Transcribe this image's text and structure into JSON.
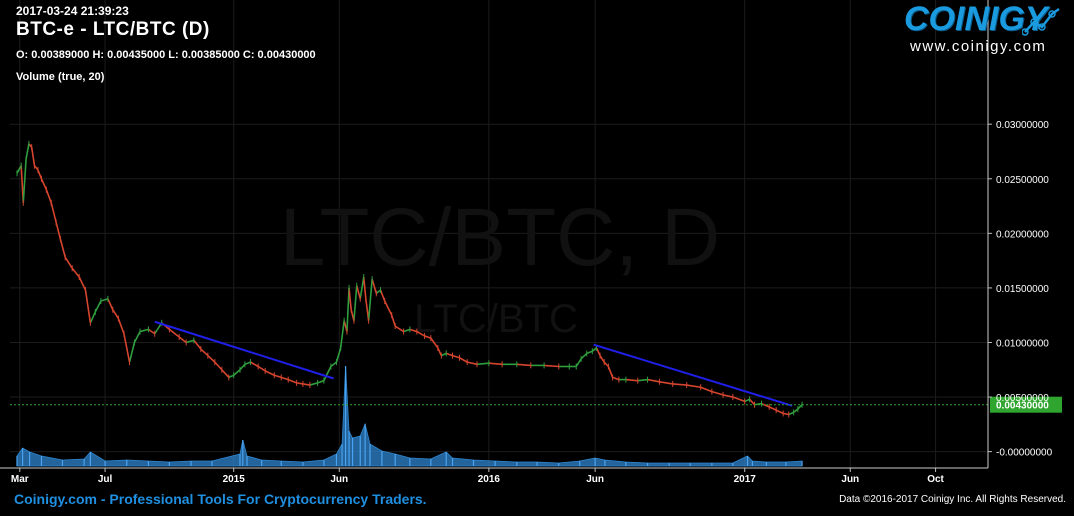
{
  "header": {
    "timestamp": "2017-03-24 21:39:23",
    "title": "BTC-e - LTC/BTC (D)",
    "ohlc": "O: 0.00389000 H: 0.00435000 L: 0.00385000 C: 0.00430000",
    "volume_label": "Volume (true, 20)"
  },
  "logo": {
    "wordmark": "COINIGY",
    "url": "www.coinigy.com"
  },
  "footer": {
    "left": "Coinigy.com - Professional Tools For Cryptocurrency Traders.",
    "right": "Data ©2016-2017 Coinigy Inc. All Rights Reserved."
  },
  "watermark": {
    "big": "LTC/BTC, D",
    "small": "LTC/BTC"
  },
  "colors": {
    "background": "#000000",
    "grid": "#1c1c1c",
    "up": "#2e9e3e",
    "down": "#d6452e",
    "trendline": "#1f1fe8",
    "volume": "#2f86d0",
    "last_price_bg": "#2fa52f",
    "last_price_line": "#2fa52f",
    "brand": "#1a9be0"
  },
  "chart_data": {
    "type": "line",
    "x_scale": "time",
    "y_scale": "linear",
    "ylim": [
      -0.0015,
      0.0335
    ],
    "y_ticks": [
      0.03,
      0.025,
      0.02,
      0.015,
      0.01,
      0.005,
      0.0
    ],
    "y_tick_labels": [
      "0.03000000",
      "0.02500000",
      "0.02000000",
      "0.01500000",
      "0.01000000",
      "0.00500000",
      "-0.00000000"
    ],
    "x_range": [
      "2014-02-15",
      "2017-12-15"
    ],
    "x_ticks": [
      {
        "date": "2014-03-01",
        "label": "Mar"
      },
      {
        "date": "2014-07-01",
        "label": "Jul"
      },
      {
        "date": "2015-01-01",
        "label": "2015"
      },
      {
        "date": "2015-06-01",
        "label": "Jun"
      },
      {
        "date": "2016-01-01",
        "label": "2016"
      },
      {
        "date": "2016-06-01",
        "label": "Jun"
      },
      {
        "date": "2017-01-01",
        "label": "2017"
      },
      {
        "date": "2017-06-01",
        "label": "Jun"
      },
      {
        "date": "2017-10-01",
        "label": "Oct"
      }
    ],
    "last_price": 0.0043,
    "last_price_label": "0.00430000",
    "grid": true,
    "series": [
      {
        "role": "price",
        "points": [
          [
            "2014-02-25",
            0.0255
          ],
          [
            "2014-03-03",
            0.0262
          ],
          [
            "2014-03-06",
            0.0228
          ],
          [
            "2014-03-10",
            0.0268
          ],
          [
            "2014-03-14",
            0.0282
          ],
          [
            "2014-03-18",
            0.0279
          ],
          [
            "2014-03-22",
            0.0262
          ],
          [
            "2014-03-27",
            0.0258
          ],
          [
            "2014-04-01",
            0.025
          ],
          [
            "2014-04-08",
            0.024
          ],
          [
            "2014-04-15",
            0.0228
          ],
          [
            "2014-04-22",
            0.021
          ],
          [
            "2014-04-28",
            0.0195
          ],
          [
            "2014-05-05",
            0.0178
          ],
          [
            "2014-05-15",
            0.0168
          ],
          [
            "2014-05-25",
            0.016
          ],
          [
            "2014-06-03",
            0.0148
          ],
          [
            "2014-06-10",
            0.0118
          ],
          [
            "2014-06-17",
            0.0128
          ],
          [
            "2014-06-25",
            0.0138
          ],
          [
            "2014-07-05",
            0.014
          ],
          [
            "2014-07-12",
            0.013
          ],
          [
            "2014-07-20",
            0.0122
          ],
          [
            "2014-07-28",
            0.0108
          ],
          [
            "2014-08-05",
            0.0082
          ],
          [
            "2014-08-12",
            0.01
          ],
          [
            "2014-08-20",
            0.011
          ],
          [
            "2014-09-01",
            0.0112
          ],
          [
            "2014-09-10",
            0.0108
          ],
          [
            "2014-09-20",
            0.0118
          ],
          [
            "2014-10-01",
            0.0112
          ],
          [
            "2014-10-15",
            0.0105
          ],
          [
            "2014-10-25",
            0.01
          ],
          [
            "2014-11-05",
            0.0102
          ],
          [
            "2014-11-15",
            0.0094
          ],
          [
            "2014-11-25",
            0.0088
          ],
          [
            "2014-12-05",
            0.0082
          ],
          [
            "2014-12-15",
            0.0075
          ],
          [
            "2014-12-25",
            0.0068
          ],
          [
            "2015-01-01",
            0.007
          ],
          [
            "2015-01-10",
            0.0075
          ],
          [
            "2015-01-17",
            0.008
          ],
          [
            "2015-01-25",
            0.0082
          ],
          [
            "2015-02-05",
            0.0078
          ],
          [
            "2015-02-15",
            0.0074
          ],
          [
            "2015-02-28",
            0.007
          ],
          [
            "2015-03-10",
            0.0068
          ],
          [
            "2015-03-20",
            0.0066
          ],
          [
            "2015-04-01",
            0.0063
          ],
          [
            "2015-04-10",
            0.0062
          ],
          [
            "2015-04-20",
            0.0061
          ],
          [
            "2015-05-01",
            0.0063
          ],
          [
            "2015-05-10",
            0.0065
          ],
          [
            "2015-05-20",
            0.0078
          ],
          [
            "2015-05-28",
            0.0082
          ],
          [
            "2015-06-03",
            0.0095
          ],
          [
            "2015-06-08",
            0.012
          ],
          [
            "2015-06-12",
            0.011
          ],
          [
            "2015-06-15",
            0.015
          ],
          [
            "2015-06-18",
            0.013
          ],
          [
            "2015-06-22",
            0.012
          ],
          [
            "2015-06-26",
            0.0152
          ],
          [
            "2015-07-01",
            0.014
          ],
          [
            "2015-07-06",
            0.016
          ],
          [
            "2015-07-09",
            0.014
          ],
          [
            "2015-07-13",
            0.012
          ],
          [
            "2015-07-18",
            0.0158
          ],
          [
            "2015-07-24",
            0.0145
          ],
          [
            "2015-07-30",
            0.0148
          ],
          [
            "2015-08-05",
            0.0138
          ],
          [
            "2015-08-15",
            0.0125
          ],
          [
            "2015-08-20",
            0.0115
          ],
          [
            "2015-09-01",
            0.011
          ],
          [
            "2015-09-10",
            0.0112
          ],
          [
            "2015-09-20",
            0.011
          ],
          [
            "2015-10-01",
            0.0106
          ],
          [
            "2015-10-10",
            0.0104
          ],
          [
            "2015-10-20",
            0.0095
          ],
          [
            "2015-10-25",
            0.0088
          ],
          [
            "2015-11-01",
            0.009
          ],
          [
            "2015-11-10",
            0.0088
          ],
          [
            "2015-11-20",
            0.0086
          ],
          [
            "2015-12-01",
            0.0082
          ],
          [
            "2015-12-15",
            0.008
          ],
          [
            "2016-01-01",
            0.0081
          ],
          [
            "2016-01-20",
            0.008
          ],
          [
            "2016-02-10",
            0.008
          ],
          [
            "2016-03-01",
            0.0079
          ],
          [
            "2016-03-20",
            0.0079
          ],
          [
            "2016-04-10",
            0.0078
          ],
          [
            "2016-04-25",
            0.0078
          ],
          [
            "2016-05-05",
            0.0078
          ],
          [
            "2016-05-12",
            0.0085
          ],
          [
            "2016-05-20",
            0.009
          ],
          [
            "2016-05-28",
            0.0092
          ],
          [
            "2016-06-03",
            0.0095
          ],
          [
            "2016-06-08",
            0.0088
          ],
          [
            "2016-06-14",
            0.0082
          ],
          [
            "2016-06-20",
            0.0078
          ],
          [
            "2016-06-26",
            0.0068
          ],
          [
            "2016-07-05",
            0.0066
          ],
          [
            "2016-07-15",
            0.0066
          ],
          [
            "2016-08-01",
            0.0065
          ],
          [
            "2016-08-15",
            0.0066
          ],
          [
            "2016-09-01",
            0.0064
          ],
          [
            "2016-09-20",
            0.0062
          ],
          [
            "2016-10-10",
            0.0061
          ],
          [
            "2016-10-30",
            0.0059
          ],
          [
            "2016-11-15",
            0.0055
          ],
          [
            "2016-12-01",
            0.0052
          ],
          [
            "2016-12-15",
            0.005
          ],
          [
            "2017-01-01",
            0.0046
          ],
          [
            "2017-01-08",
            0.0048
          ],
          [
            "2017-01-15",
            0.0043
          ],
          [
            "2017-01-25",
            0.0044
          ],
          [
            "2017-02-05",
            0.0041
          ],
          [
            "2017-02-15",
            0.0038
          ],
          [
            "2017-02-25",
            0.0035
          ],
          [
            "2017-03-05",
            0.0034
          ],
          [
            "2017-03-12",
            0.0036
          ],
          [
            "2017-03-18",
            0.0039
          ],
          [
            "2017-03-24",
            0.0043
          ]
        ]
      },
      {
        "role": "trendline",
        "points": [
          [
            "2014-09-10",
            0.0119
          ],
          [
            "2015-05-24",
            0.0067
          ]
        ]
      },
      {
        "role": "trendline",
        "points": [
          [
            "2016-05-30",
            0.0098
          ],
          [
            "2017-03-10",
            0.0042
          ]
        ]
      },
      {
        "role": "volume",
        "ylim": [
          0,
          1
        ],
        "points": [
          [
            "2014-02-25",
            0.1
          ],
          [
            "2014-03-05",
            0.18
          ],
          [
            "2014-03-15",
            0.14
          ],
          [
            "2014-04-01",
            0.1
          ],
          [
            "2014-05-01",
            0.06
          ],
          [
            "2014-06-01",
            0.07
          ],
          [
            "2014-06-10",
            0.14
          ],
          [
            "2014-07-01",
            0.05
          ],
          [
            "2014-08-01",
            0.06
          ],
          [
            "2014-09-01",
            0.05
          ],
          [
            "2014-10-01",
            0.04
          ],
          [
            "2014-11-01",
            0.05
          ],
          [
            "2014-12-01",
            0.05
          ],
          [
            "2015-01-10",
            0.12
          ],
          [
            "2015-01-14",
            0.26
          ],
          [
            "2015-01-20",
            0.1
          ],
          [
            "2015-02-10",
            0.06
          ],
          [
            "2015-03-10",
            0.05
          ],
          [
            "2015-04-10",
            0.04
          ],
          [
            "2015-05-10",
            0.06
          ],
          [
            "2015-05-28",
            0.12
          ],
          [
            "2015-06-05",
            0.22
          ],
          [
            "2015-06-10",
            1.0
          ],
          [
            "2015-06-15",
            0.35
          ],
          [
            "2015-06-20",
            0.28
          ],
          [
            "2015-07-01",
            0.3
          ],
          [
            "2015-07-08",
            0.42
          ],
          [
            "2015-07-15",
            0.22
          ],
          [
            "2015-08-01",
            0.15
          ],
          [
            "2015-08-20",
            0.12
          ],
          [
            "2015-09-10",
            0.08
          ],
          [
            "2015-10-10",
            0.07
          ],
          [
            "2015-11-01",
            0.14
          ],
          [
            "2015-11-10",
            0.08
          ],
          [
            "2015-12-10",
            0.06
          ],
          [
            "2016-01-10",
            0.05
          ],
          [
            "2016-02-10",
            0.04
          ],
          [
            "2016-03-10",
            0.04
          ],
          [
            "2016-04-10",
            0.03
          ],
          [
            "2016-05-10",
            0.05
          ],
          [
            "2016-06-01",
            0.08
          ],
          [
            "2016-06-15",
            0.06
          ],
          [
            "2016-07-15",
            0.04
          ],
          [
            "2016-08-15",
            0.03
          ],
          [
            "2016-09-15",
            0.03
          ],
          [
            "2016-10-15",
            0.03
          ],
          [
            "2016-11-15",
            0.03
          ],
          [
            "2016-12-15",
            0.03
          ],
          [
            "2017-01-05",
            0.1
          ],
          [
            "2017-01-12",
            0.05
          ],
          [
            "2017-02-01",
            0.04
          ],
          [
            "2017-03-01",
            0.04
          ],
          [
            "2017-03-24",
            0.05
          ]
        ]
      }
    ]
  }
}
